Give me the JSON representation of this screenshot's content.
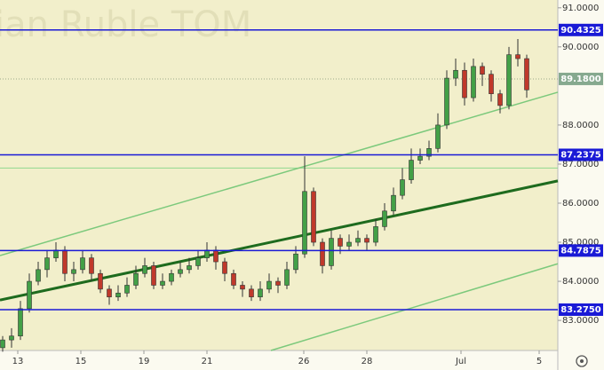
{
  "chart_data": {
    "type": "candlestick",
    "watermark": "ian Ruble TOM",
    "open": [
      82.3,
      82.5,
      82.6,
      83.3,
      84.0,
      84.3,
      84.6,
      84.8,
      84.2,
      84.3,
      84.6,
      84.2,
      83.8,
      83.6,
      83.7,
      83.9,
      84.2,
      84.4,
      83.9,
      84.0,
      84.2,
      84.3,
      84.4,
      84.6,
      84.8,
      84.5,
      84.2,
      83.9,
      83.8,
      83.6,
      83.8,
      84.0,
      83.9,
      84.3,
      84.7,
      86.3,
      85.0,
      84.4,
      85.1,
      84.9,
      85.0,
      85.1,
      85.0,
      85.4,
      85.8,
      86.2,
      86.6,
      87.1,
      87.2,
      87.4,
      88.0,
      89.2,
      89.4,
      88.7,
      89.5,
      89.3,
      88.8,
      88.5,
      89.8,
      89.7
    ],
    "high": [
      82.6,
      82.8,
      83.5,
      84.2,
      84.5,
      84.8,
      85.0,
      84.9,
      84.5,
      84.8,
      84.7,
      84.3,
      83.9,
      83.9,
      84.1,
      84.4,
      84.6,
      84.5,
      84.2,
      84.3,
      84.5,
      84.6,
      84.8,
      85.0,
      84.9,
      84.6,
      84.3,
      84.0,
      83.9,
      84.0,
      84.2,
      84.1,
      84.5,
      84.9,
      87.2,
      86.4,
      85.1,
      85.3,
      85.2,
      85.2,
      85.3,
      85.2,
      85.6,
      86.0,
      86.4,
      86.9,
      87.4,
      87.4,
      87.6,
      88.3,
      89.4,
      89.7,
      89.6,
      89.7,
      89.6,
      89.4,
      88.9,
      90.0,
      90.2,
      89.8
    ],
    "low": [
      82.2,
      82.3,
      82.5,
      83.2,
      83.9,
      84.1,
      84.5,
      84.0,
      84.0,
      84.2,
      84.0,
      83.7,
      83.4,
      83.5,
      83.6,
      83.8,
      84.1,
      83.8,
      83.8,
      83.9,
      84.1,
      84.2,
      84.3,
      84.5,
      84.3,
      84.0,
      83.8,
      83.6,
      83.5,
      83.5,
      83.7,
      83.7,
      83.8,
      84.2,
      84.6,
      84.9,
      84.2,
      84.3,
      84.7,
      84.8,
      84.9,
      84.8,
      84.9,
      85.3,
      85.7,
      86.1,
      86.5,
      87.0,
      87.1,
      87.3,
      87.9,
      89.0,
      88.5,
      88.6,
      89.0,
      88.6,
      88.3,
      88.4,
      89.5,
      88.7
    ],
    "close": [
      82.5,
      82.6,
      83.3,
      84.0,
      84.3,
      84.6,
      84.8,
      84.2,
      84.3,
      84.6,
      84.2,
      83.8,
      83.6,
      83.7,
      83.9,
      84.2,
      84.4,
      83.9,
      84.0,
      84.2,
      84.3,
      84.4,
      84.6,
      84.8,
      84.5,
      84.2,
      83.9,
      83.8,
      83.6,
      83.8,
      84.0,
      83.9,
      84.3,
      84.7,
      86.3,
      85.0,
      84.4,
      85.1,
      84.9,
      85.0,
      85.1,
      85.0,
      85.4,
      85.8,
      86.2,
      86.6,
      87.1,
      87.2,
      87.4,
      88.0,
      89.2,
      89.4,
      88.7,
      89.5,
      89.3,
      88.8,
      88.5,
      89.8,
      89.7,
      88.9
    ],
    "up_color": "#43a047",
    "down_color": "#c0392b",
    "xlim": [
      -0.3,
      62.5
    ],
    "xticks": [
      {
        "value": 1.7,
        "label": "13"
      },
      {
        "value": 8.8,
        "label": "15"
      },
      {
        "value": 15.9,
        "label": "19"
      },
      {
        "value": 23,
        "label": "21"
      },
      {
        "value": 33.9,
        "label": "26"
      },
      {
        "value": 41,
        "label": "28"
      },
      {
        "value": 51.6,
        "label": "Jul"
      },
      {
        "value": 60.4,
        "label": "5"
      }
    ],
    "ylim": [
      82.23,
      91.2
    ],
    "yticks": [
      {
        "value": 91,
        "label": "91.0000"
      },
      {
        "value": 90,
        "label": "90.0000"
      },
      {
        "value": 88,
        "label": "88.0000"
      },
      {
        "value": 87,
        "label": "87.0000"
      },
      {
        "value": 86,
        "label": "86.0000"
      },
      {
        "value": 85,
        "label": "85.0000"
      },
      {
        "value": 84,
        "label": "84.0000"
      },
      {
        "value": 83,
        "label": "83.0000"
      }
    ],
    "levels": [
      {
        "value": 90.4325,
        "label": "90.4325",
        "color": "#1a1ad6"
      },
      {
        "value": 87.2375,
        "label": "87.2375",
        "color": "#1a1ad6"
      },
      {
        "value": 84.7875,
        "label": "84.7875",
        "color": "#1a1ad6"
      },
      {
        "value": 83.275,
        "label": "83.2750",
        "color": "#1a1ad6"
      }
    ],
    "price_line": {
      "value": 89.18,
      "label": "89.1800",
      "color": "#86a98f"
    },
    "hlines": [
      {
        "value": 86.9,
        "color": "#8fd88f"
      }
    ],
    "trendlines": [
      {
        "x": [
          -0.3,
          62.5
        ],
        "y": [
          83.52,
          86.57
        ],
        "color": "#1e6b1e",
        "width": 3
      },
      {
        "x": [
          -0.3,
          62.5
        ],
        "y": [
          84.66,
          88.84
        ],
        "color": "#7cc97c",
        "width": 1.5
      },
      {
        "x": [
          30.2,
          62.5
        ],
        "y": [
          82.23,
          84.45
        ],
        "color": "#7cc97c",
        "width": 1.5
      }
    ]
  }
}
